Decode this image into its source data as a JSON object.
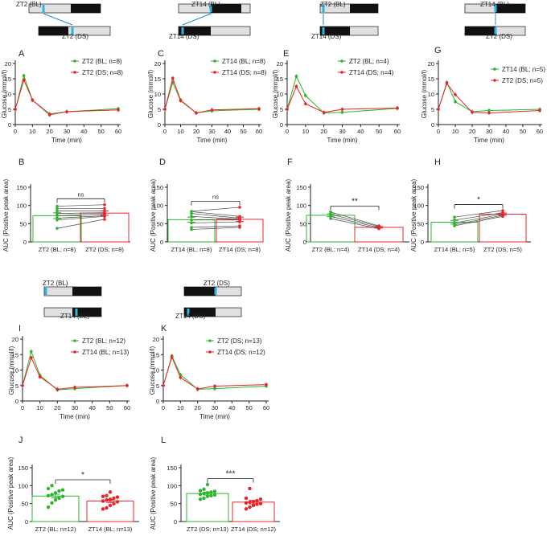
{
  "colors": {
    "bl": "#2db52d",
    "ds": "#e8242a",
    "ds_cyan": "#2bb6e3",
    "dark": "#111111",
    "light": "#e0e0e0"
  },
  "schematics": [
    {
      "id": "s1",
      "top_label": "ZT2 (BL)",
      "bottom_label": "ZT2 (DS)"
    },
    {
      "id": "s2",
      "top_label": "ZT14 (BL)",
      "bottom_label": "ZT14 (DS)"
    },
    {
      "id": "s3",
      "top_label": "ZT2 (BL)",
      "bottom_label": "ZT14 (DS)"
    },
    {
      "id": "s4",
      "top_label": "ZT14 (BL)",
      "bottom_label": "ZT2 (DS)"
    },
    {
      "id": "s5",
      "top_label": "ZT2 (BL)",
      "bottom_label": "ZT14 (BL)"
    },
    {
      "id": "s6",
      "top_label": "ZT2 (DS)",
      "bottom_label": "ZT14 (DS)"
    }
  ],
  "chart_data": [
    {
      "panel": "A",
      "type": "line",
      "ylabel": "Glucose (mmol/l)",
      "xlabel": "Time (min)",
      "ylim": [
        0,
        20
      ],
      "yticks": [
        0,
        5,
        10,
        15,
        20
      ],
      "xticks": [
        0,
        10,
        20,
        30,
        40,
        50,
        60
      ],
      "x": [
        0,
        5,
        10,
        20,
        30,
        60
      ],
      "series": [
        {
          "name": "ZT2 (BL; n=8)",
          "color": "green",
          "values": [
            5.0,
            16.0,
            8.0,
            3.5,
            4.2,
            5.2
          ]
        },
        {
          "name": "ZT2 (DS; n=8)",
          "color": "red",
          "values": [
            5.0,
            14.6,
            8.0,
            3.2,
            4.2,
            4.8
          ]
        }
      ]
    },
    {
      "panel": "C",
      "type": "line",
      "ylabel": "Glucose (mmol/l)",
      "xlabel": "Time (min)",
      "ylim": [
        0,
        20
      ],
      "yticks": [
        0,
        5,
        10,
        15,
        20
      ],
      "xticks": [
        0,
        10,
        20,
        30,
        40,
        50,
        60
      ],
      "x": [
        0,
        5,
        10,
        20,
        30,
        60
      ],
      "series": [
        {
          "name": "ZT14 (BL; n=8)",
          "color": "green",
          "values": [
            5.0,
            13.8,
            7.8,
            3.8,
            4.5,
            5.0
          ]
        },
        {
          "name": "ZT14 (DS; n=8)",
          "color": "red",
          "values": [
            5.0,
            15.2,
            8.0,
            3.8,
            4.8,
            5.2
          ]
        }
      ]
    },
    {
      "panel": "E",
      "type": "line",
      "ylabel": "Glucose (mmol/l)",
      "xlabel": "Time (min)",
      "ylim": [
        0,
        20
      ],
      "yticks": [
        0,
        5,
        10,
        15,
        20
      ],
      "xticks": [
        0,
        10,
        20,
        30,
        40,
        50,
        60
      ],
      "x": [
        0,
        5,
        10,
        20,
        30,
        60
      ],
      "series": [
        {
          "name": "ZT2 (BL; n=4)",
          "color": "green",
          "values": [
            5.0,
            15.8,
            9.5,
            3.8,
            4.0,
            5.3
          ]
        },
        {
          "name": "ZT14 (DS; n=4)",
          "color": "red",
          "values": [
            5.0,
            12.5,
            6.8,
            4.0,
            5.0,
            5.4
          ]
        }
      ]
    },
    {
      "panel": "G",
      "type": "line",
      "ylabel": "Glucose (mmol/l)",
      "xlabel": "Time (min)",
      "ylim": [
        0,
        20
      ],
      "yticks": [
        0,
        5,
        10,
        15,
        20
      ],
      "xticks": [
        0,
        10,
        20,
        30,
        40,
        50,
        60
      ],
      "x": [
        0,
        5,
        10,
        20,
        30,
        60
      ],
      "series": [
        {
          "name": "ZT14 (BL; n=5)",
          "color": "green",
          "values": [
            5.0,
            13.8,
            7.5,
            4.2,
            4.6,
            5.0
          ]
        },
        {
          "name": "ZT2 (DS; n=5)",
          "color": "red",
          "values": [
            5.0,
            13.5,
            9.8,
            4.0,
            3.8,
            4.6
          ]
        }
      ]
    },
    {
      "panel": "I",
      "type": "line",
      "ylabel": "Glucose (mmol/l)",
      "xlabel": "Time (min)",
      "ylim": [
        0,
        20
      ],
      "yticks": [
        0,
        5,
        10,
        15,
        20
      ],
      "xticks": [
        0,
        10,
        20,
        30,
        40,
        50,
        60
      ],
      "x": [
        0,
        5,
        10,
        20,
        30,
        60
      ],
      "series": [
        {
          "name": "ZT2 (BL; n=12)",
          "color": "green",
          "values": [
            5.0,
            16.0,
            8.3,
            3.6,
            4.0,
            5.0
          ]
        },
        {
          "name": "ZT14 (BL; n=13)",
          "color": "red",
          "values": [
            5.0,
            14.0,
            7.8,
            3.8,
            4.4,
            5.0
          ]
        }
      ]
    },
    {
      "panel": "K",
      "type": "line",
      "ylabel": "Glucose (mmol/l)",
      "xlabel": "Time (min)",
      "ylim": [
        0,
        20
      ],
      "yticks": [
        0,
        5,
        10,
        15,
        20
      ],
      "xticks": [
        0,
        10,
        20,
        30,
        40,
        50,
        60
      ],
      "x": [
        0,
        5,
        10,
        20,
        30,
        60
      ],
      "series": [
        {
          "name": "ZT2 (DS; n=13)",
          "color": "green",
          "values": [
            5.0,
            14.6,
            8.5,
            3.8,
            4.0,
            4.8
          ]
        },
        {
          "name": "ZT14 (DS; n=12)",
          "color": "red",
          "values": [
            5.0,
            14.2,
            7.6,
            3.9,
            4.8,
            5.3
          ]
        }
      ]
    },
    {
      "panel": "B",
      "type": "bar",
      "paired": true,
      "ylabel": "AUC (Positive peak area)",
      "ylim": [
        0,
        150
      ],
      "yticks": [
        0,
        50,
        100,
        150
      ],
      "sig": "ns",
      "categories": [
        "ZT2 (BL; n=8)",
        "ZT2 (DS; n=8)"
      ],
      "values": [
        72,
        79
      ],
      "errors": [
        8,
        6
      ],
      "points": [
        [
          37,
          60,
          65,
          72,
          78,
          85,
          92,
          98
        ],
        [
          62,
          70,
          72,
          76,
          80,
          85,
          92,
          102
        ]
      ]
    },
    {
      "panel": "D",
      "type": "bar",
      "paired": true,
      "ylabel": "AUC (Positive peak area)",
      "ylim": [
        0,
        150
      ],
      "yticks": [
        0,
        50,
        100,
        150
      ],
      "sig": "ns",
      "categories": [
        "ZT14 (BL; n=8)",
        "ZT14 (DS; n=8)"
      ],
      "values": [
        61,
        62
      ],
      "errors": [
        7,
        6
      ],
      "points": [
        [
          34,
          40,
          52,
          60,
          70,
          78,
          83,
          84
        ],
        [
          40,
          44,
          55,
          60,
          62,
          65,
          70,
          95
        ]
      ]
    },
    {
      "panel": "F",
      "type": "bar",
      "paired": true,
      "ylabel": "AUC (Positive peak area)",
      "ylim": [
        0,
        150
      ],
      "yticks": [
        0,
        50,
        100,
        150
      ],
      "sig": "**",
      "categories": [
        "ZT2 (BL; n=4)",
        "ZT14 (DS; n=4)"
      ],
      "values": [
        73,
        40
      ],
      "errors": [
        4,
        2
      ],
      "points": [
        [
          64,
          70,
          76,
          82
        ],
        [
          36,
          39,
          42,
          44
        ]
      ]
    },
    {
      "panel": "H",
      "type": "bar",
      "paired": true,
      "ylabel": "AUC (Positive peak area)",
      "ylim": [
        0,
        150
      ],
      "yticks": [
        0,
        50,
        100,
        150
      ],
      "sig": "*",
      "categories": [
        "ZT14 (BL; n=5)",
        "ZT2 (DS; n=5)"
      ],
      "values": [
        54,
        76
      ],
      "errors": [
        5,
        3
      ],
      "points": [
        [
          44,
          47,
          52,
          60,
          68
        ],
        [
          70,
          73,
          76,
          80,
          86
        ]
      ]
    },
    {
      "panel": "J",
      "type": "bar",
      "paired": false,
      "ylabel": "AUC (Positive peak area)",
      "ylim": [
        0,
        150
      ],
      "yticks": [
        0,
        50,
        100,
        150
      ],
      "sig": "*",
      "categories": [
        "ZT2 (BL; n=12)",
        "ZT14 (BL; n=13)"
      ],
      "values": [
        71,
        57
      ],
      "errors": [
        5,
        4
      ],
      "points": [
        [
          40,
          52,
          60,
          65,
          70,
          72,
          75,
          80,
          85,
          88,
          92,
          100
        ],
        [
          35,
          38,
          45,
          50,
          55,
          57,
          60,
          62,
          65,
          68,
          70,
          72,
          82
        ]
      ]
    },
    {
      "panel": "L",
      "type": "bar",
      "paired": false,
      "ylabel": "AUC (Positive peak area)",
      "ylim": [
        0,
        150
      ],
      "yticks": [
        0,
        50,
        100,
        150
      ],
      "sig": "***",
      "categories": [
        "ZT2 (DS; n=13)",
        "ZT14 (DS; n=12)"
      ],
      "values": [
        78,
        54
      ],
      "errors": [
        4,
        5
      ],
      "points": [
        [
          62,
          65,
          70,
          72,
          74,
          76,
          78,
          80,
          82,
          84,
          86,
          90,
          103
        ],
        [
          35,
          40,
          45,
          48,
          50,
          52,
          54,
          55,
          58,
          62,
          65,
          92
        ]
      ]
    }
  ]
}
